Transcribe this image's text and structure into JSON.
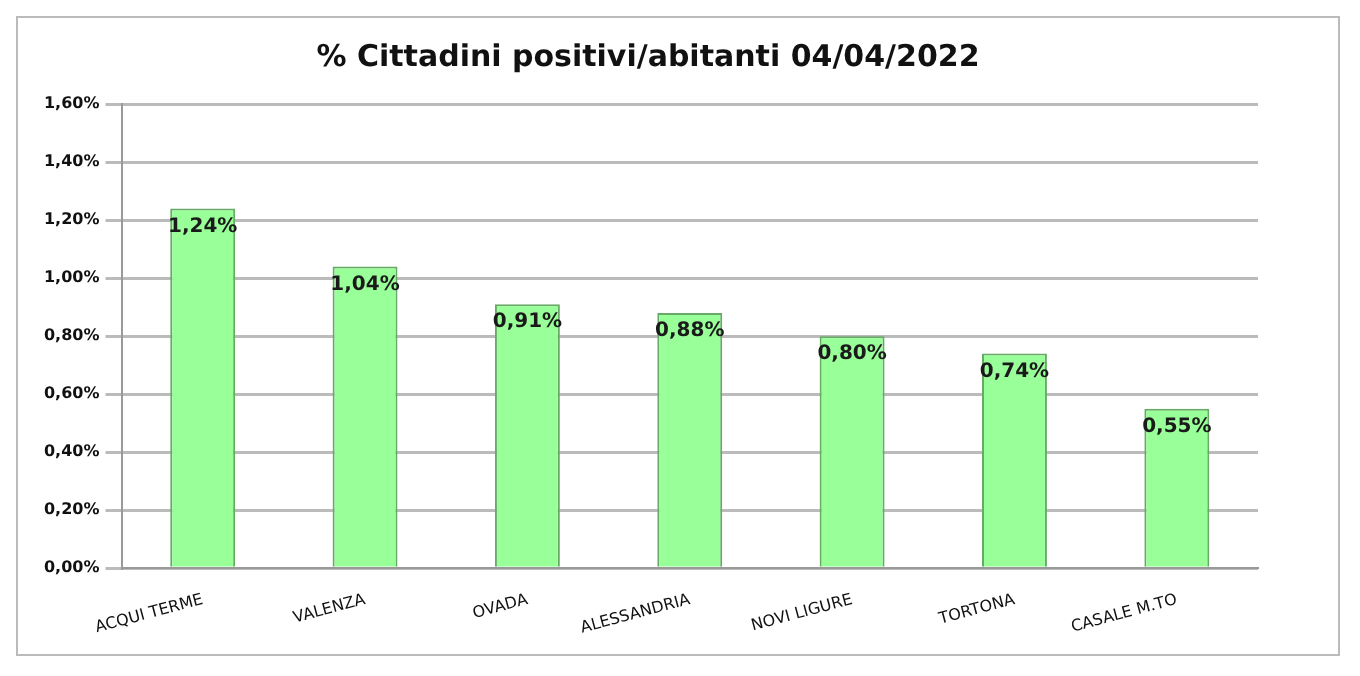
{
  "chart_data": {
    "type": "bar",
    "title": "% Cittadini positivi/abitanti 04/04/2022",
    "categories": [
      "ACQUI TERME",
      "VALENZA",
      "OVADA",
      "ALESSANDRIA",
      "NOVI LIGURE",
      "TORTONA",
      "CASALE M.TO"
    ],
    "values": [
      1.24,
      1.04,
      0.91,
      0.88,
      0.8,
      0.74,
      0.55
    ],
    "value_labels": [
      "1,24%",
      "1,04%",
      "0,91%",
      "0,88%",
      "0,80%",
      "0,74%",
      "0,55%"
    ],
    "color": "#99ff99",
    "ylim": [
      0,
      1.6
    ],
    "yticks": [
      {
        "value": 0,
        "label": "0,00%"
      },
      {
        "value": 0.2,
        "label": "0,20%"
      },
      {
        "value": 0.4,
        "label": "0,40%"
      },
      {
        "value": 0.6,
        "label": "0,60%"
      },
      {
        "value": 0.8,
        "label": "0,80%"
      },
      {
        "value": 1.0,
        "label": "1,00%"
      },
      {
        "value": 1.2,
        "label": "1,20%"
      },
      {
        "value": 1.4,
        "label": "1,40%"
      },
      {
        "value": 1.6,
        "label": "1,60%"
      }
    ],
    "grid": "y",
    "legend": false
  }
}
